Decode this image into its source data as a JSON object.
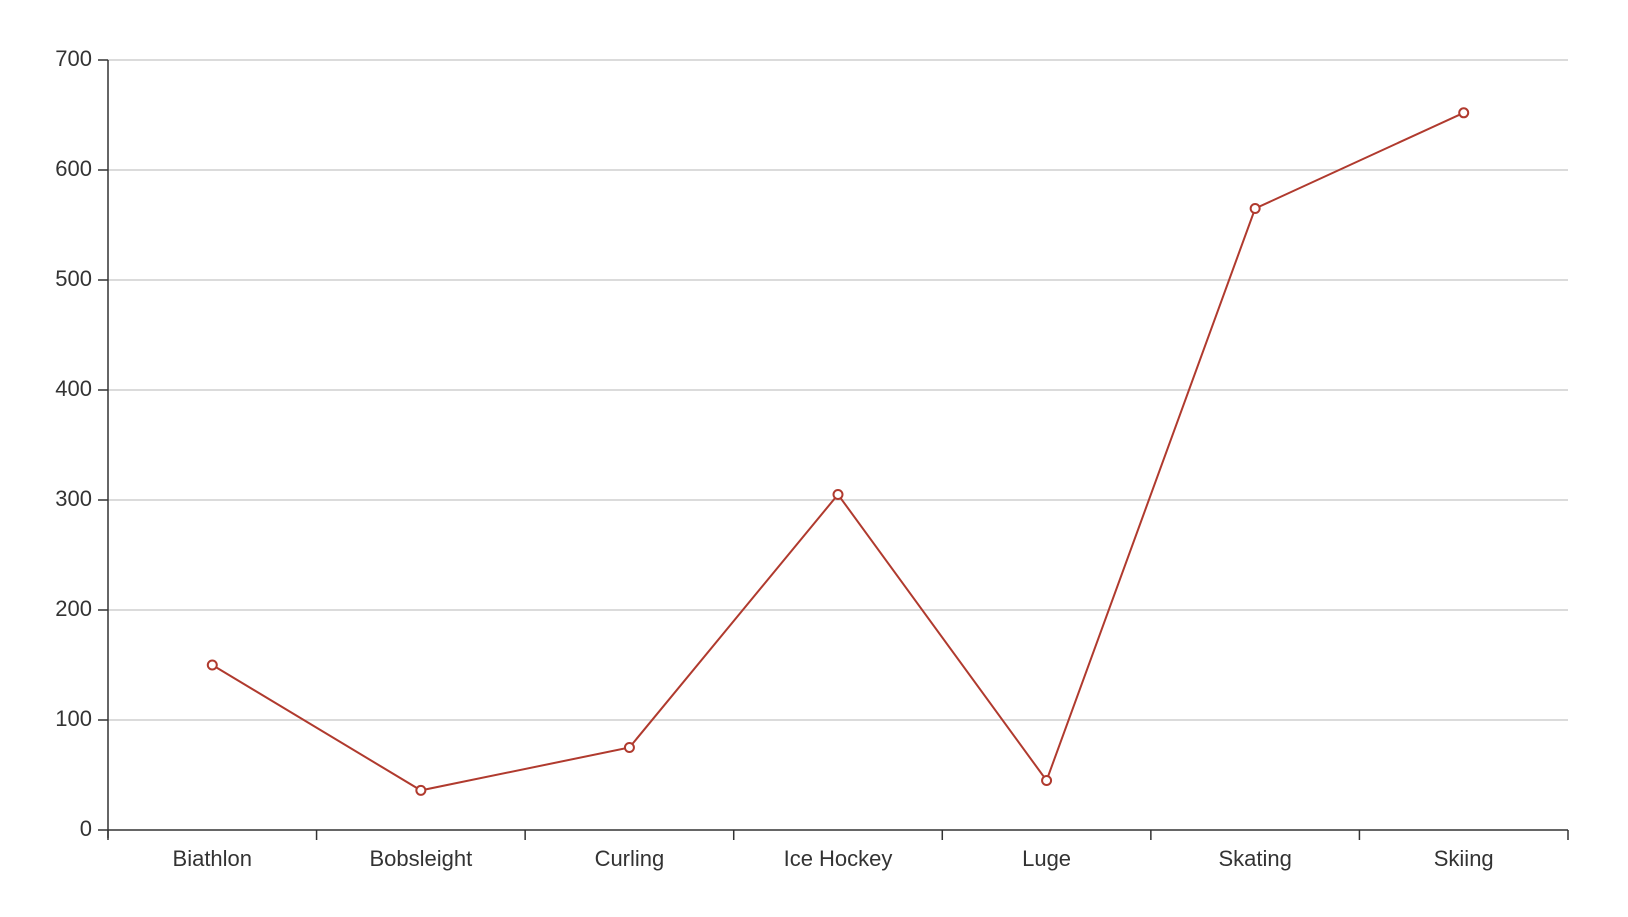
{
  "chart_data": {
    "type": "line",
    "title": "",
    "xlabel": "",
    "ylabel": "",
    "categories": [
      "Biathlon",
      "Bobsleight",
      "Curling",
      "Ice Hockey",
      "Luge",
      "Skating",
      "Skiing"
    ],
    "series": [
      {
        "values": [
          150,
          36,
          75,
          305,
          45,
          565,
          652
        ],
        "color": "#b03a2e"
      }
    ],
    "ylim": [
      0,
      700
    ],
    "yticks": [
      0,
      100,
      200,
      300,
      400,
      500,
      600,
      700
    ],
    "grid": "horizontal",
    "legend": "none"
  }
}
